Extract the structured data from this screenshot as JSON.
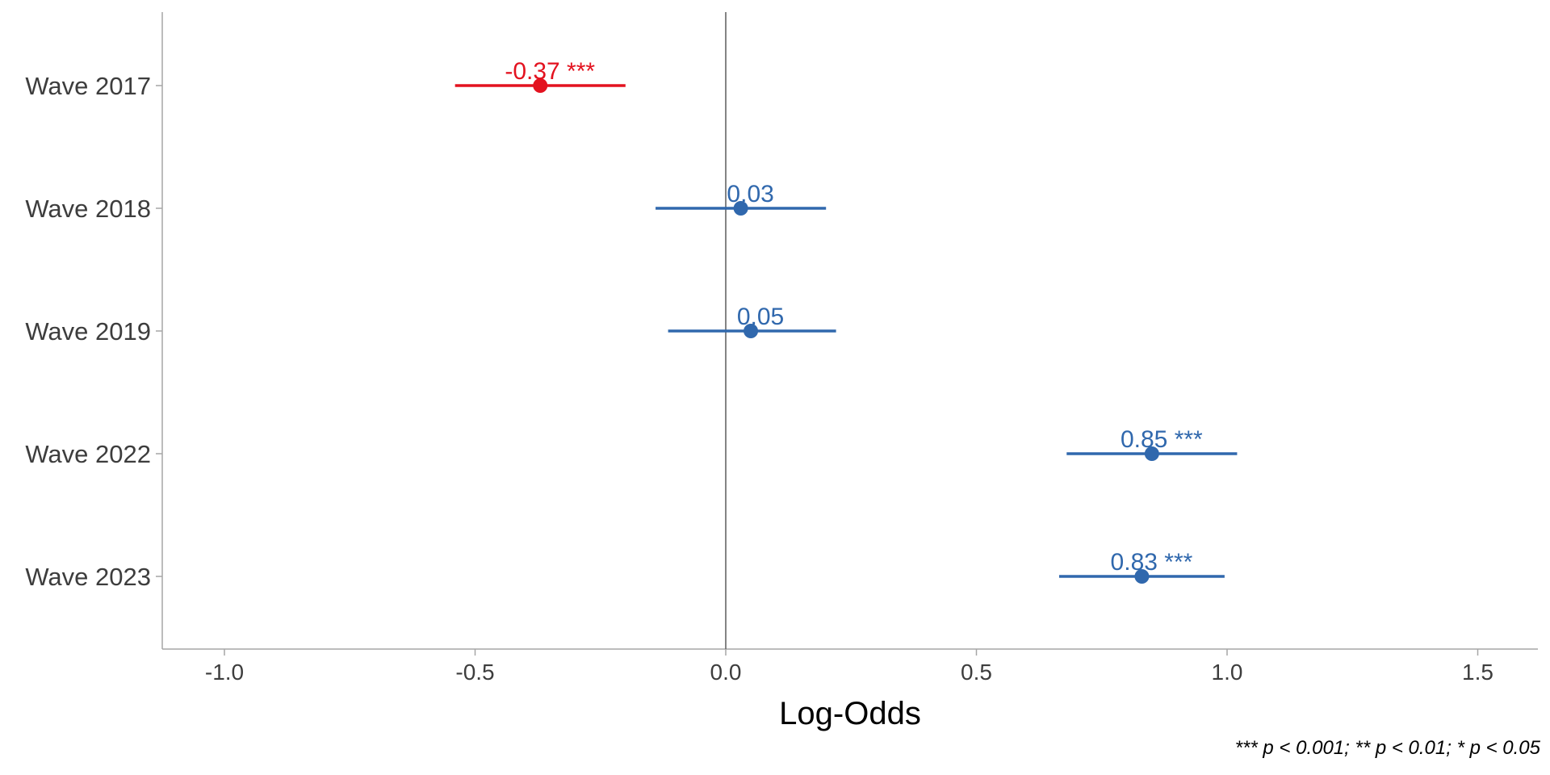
{
  "chart_data": {
    "type": "forest",
    "xlabel": "Log-Odds",
    "xlim": [
      -1.13,
      1.62
    ],
    "x_ticks": [
      -1.0,
      -0.5,
      0.0,
      0.5,
      1.0,
      1.5
    ],
    "x_tick_labels": [
      "-1.0",
      "-0.5",
      "0.0",
      "0.5",
      "1.0",
      "1.5"
    ],
    "reference_line": 0,
    "grid": false,
    "categories": [
      "Wave 2017",
      "Wave 2018",
      "Wave 2019",
      "Wave 2022",
      "Wave 2023"
    ],
    "estimates": [
      {
        "category": "Wave 2017",
        "value": -0.37,
        "ci_low": -0.54,
        "ci_high": -0.2,
        "label": "-0.37 ***",
        "color": "#e3121f"
      },
      {
        "category": "Wave 2018",
        "value": 0.03,
        "ci_low": -0.14,
        "ci_high": 0.2,
        "label": "0.03",
        "color": "#3068ad"
      },
      {
        "category": "Wave 2019",
        "value": 0.05,
        "ci_low": -0.115,
        "ci_high": 0.22,
        "label": "0.05",
        "color": "#3068ad"
      },
      {
        "category": "Wave 2022",
        "value": 0.85,
        "ci_low": 0.68,
        "ci_high": 1.02,
        "label": "0.85 ***",
        "color": "#3068ad"
      },
      {
        "category": "Wave 2023",
        "value": 0.83,
        "ci_low": 0.665,
        "ci_high": 0.995,
        "label": "0.83 ***",
        "color": "#3068ad"
      }
    ],
    "footnote": "*** p < 0.001; ** p < 0.01; * p < 0.05"
  }
}
